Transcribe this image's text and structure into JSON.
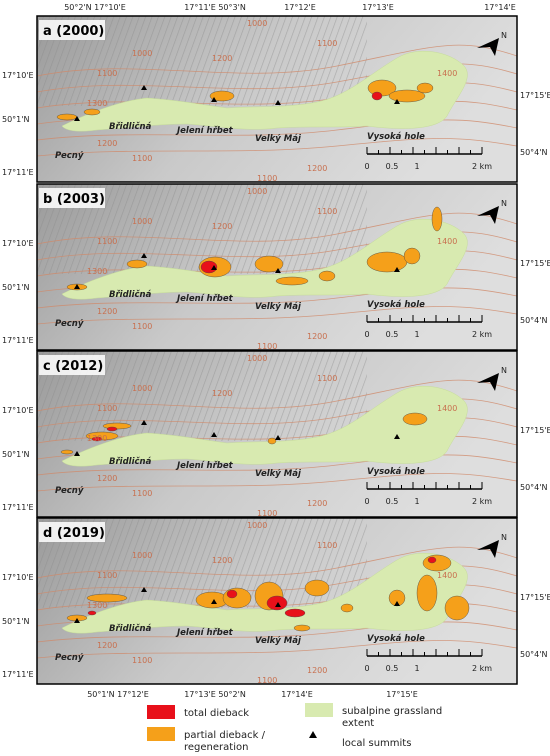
{
  "top_coordinate_labels": [
    "50°2'N 17°10'E",
    "17°11'E 50°3'N",
    "17°12'E",
    "17°13'E",
    "17°14'E"
  ],
  "bottom_coordinate_labels": [
    "50°1'N 17°12'E",
    "17°13'E 50°2'N",
    "17°14'E",
    "17°15'E"
  ],
  "panels": [
    {
      "label": "a (2000)",
      "left_labels": [
        "17°10'E",
        "50°1'N",
        "17°11'E"
      ],
      "right_labels": [
        "17°15'E",
        "50°4'N"
      ],
      "places": [
        "Pecný",
        "Břidličná",
        "Jelení hřbet",
        "Velký Máj",
        "Vysoká hole"
      ],
      "scale": [
        "0",
        "0.5",
        "1",
        "2 km"
      ],
      "north": "N",
      "contours": [
        "1000",
        "1100",
        "1300",
        "1200",
        "1100",
        "1200",
        "1000",
        "1100",
        "1400",
        "1200",
        "1100"
      ]
    },
    {
      "label": "b (2003)",
      "left_labels": [
        "17°10'E",
        "50°1'N",
        "17°11'E"
      ],
      "right_labels": [
        "17°15'E",
        "50°4'N"
      ],
      "places": [
        "Pecný",
        "Břidličná",
        "Jelení hřbet",
        "Velký Máj",
        "Vysoká hole"
      ],
      "scale": [
        "0",
        "0.5",
        "1",
        "2 km"
      ],
      "north": "N",
      "contours": [
        "1000",
        "1100",
        "1300",
        "1200",
        "1100",
        "1200",
        "1000",
        "1100",
        "1400",
        "1200",
        "1100"
      ]
    },
    {
      "label": "c (2012)",
      "left_labels": [
        "17°10'E",
        "50°1'N",
        "17°11'E"
      ],
      "right_labels": [
        "17°15'E",
        "50°4'N"
      ],
      "places": [
        "Pecný",
        "Břidličná",
        "Jelení hřbet",
        "Velký Máj",
        "Vysoká hole"
      ],
      "scale": [
        "0",
        "0.5",
        "1",
        "2 km"
      ],
      "north": "N",
      "contours": [
        "1000",
        "1100",
        "1300",
        "1200",
        "1100",
        "1200",
        "1000",
        "1100",
        "1400",
        "1200",
        "1100"
      ]
    },
    {
      "label": "d (2019)",
      "left_labels": [
        "17°10'E",
        "50°1'N",
        "17°11'E"
      ],
      "right_labels": [
        "17°15'E",
        "50°4'N"
      ],
      "places": [
        "Pecný",
        "Břidličná",
        "Jelení hřbet",
        "Velký Máj",
        "Vysoká hole"
      ],
      "scale": [
        "0",
        "0.5",
        "1",
        "2 km"
      ],
      "north": "N",
      "contours": [
        "1000",
        "1100",
        "1300",
        "1200",
        "1100",
        "1200",
        "1000",
        "1100",
        "1400",
        "1200",
        "1100"
      ]
    }
  ],
  "legend": [
    {
      "lines": [
        "total dieback"
      ]
    },
    {
      "lines": [
        "partial dieback /",
        "regeneration"
      ]
    },
    {
      "lines": [
        "subalpine grassland",
        "extent"
      ]
    },
    {
      "lines": [
        "local summits"
      ]
    }
  ]
}
